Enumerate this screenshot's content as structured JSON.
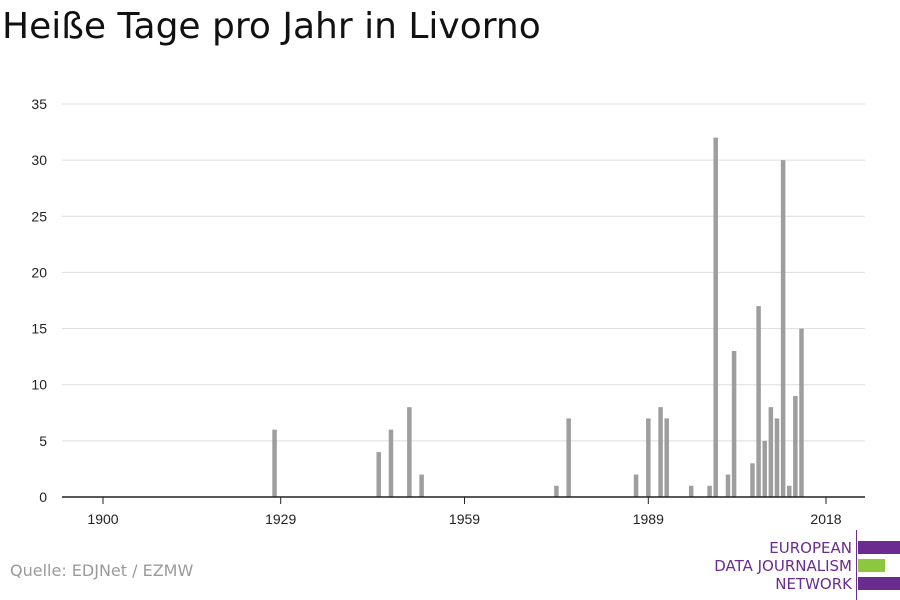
{
  "title": "Heiße Tage pro Jahr in Livorno",
  "source": "Quelle: EDJNet / EZMW",
  "logo": {
    "lines": [
      "EUROPEAN",
      "DATA JOURNALISM",
      "NETWORK"
    ],
    "colors": {
      "primary": "#6a2c8e",
      "accent": "#8dc63f"
    }
  },
  "colors": {
    "bar": "#9e9e9e",
    "grid": "#dddddd",
    "axis": "#222222"
  },
  "chart_data": {
    "type": "bar",
    "title": "Heiße Tage pro Jahr in Livorno",
    "xlabel": "",
    "ylabel": "",
    "xlim": [
      1900,
      2018
    ],
    "ylim": [
      0,
      35
    ],
    "x_ticks": [
      1900,
      1929,
      1959,
      1989,
      2018
    ],
    "y_ticks": [
      0,
      5,
      10,
      15,
      20,
      25,
      30,
      35
    ],
    "grid": true,
    "years": [
      1928,
      1945,
      1947,
      1950,
      1952,
      1974,
      1976,
      1987,
      1989,
      1991,
      1992,
      1996,
      1999,
      2000,
      2002,
      2003,
      2006,
      2007,
      2008,
      2009,
      2010,
      2011,
      2012,
      2013,
      2014
    ],
    "values": [
      6,
      4,
      6,
      8,
      2,
      1,
      7,
      2,
      7,
      8,
      7,
      1,
      1,
      32,
      2,
      13,
      3,
      17,
      5,
      8,
      7,
      30,
      1,
      9,
      15
    ]
  }
}
